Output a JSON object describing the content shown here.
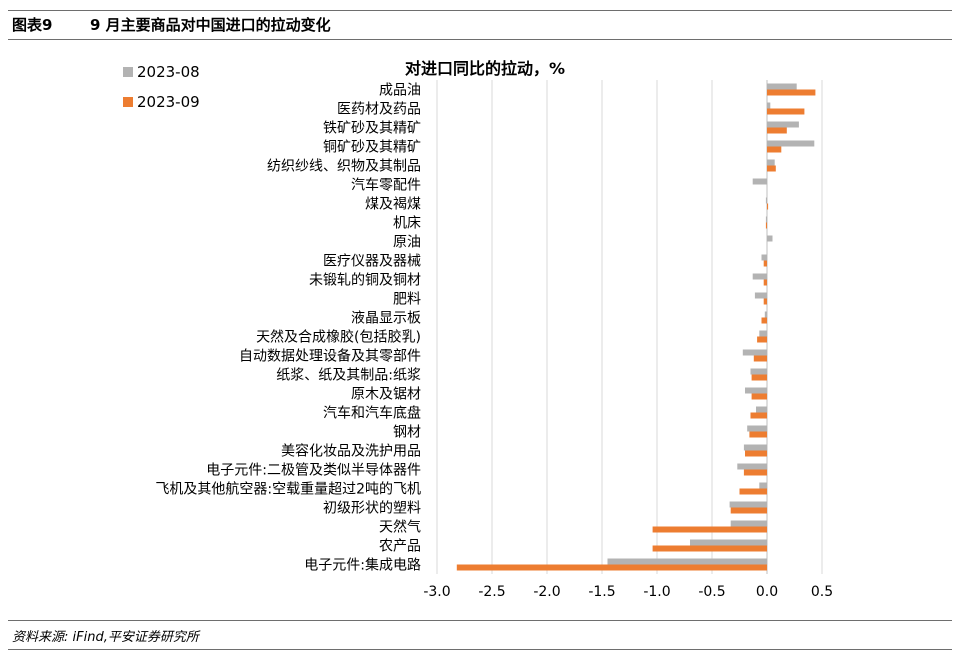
{
  "header": {
    "figure_label": "图表9",
    "title": "9 月主要商品对中国进口的拉动变化"
  },
  "footer": {
    "source": "资料来源: iFind,平安证券研究所"
  },
  "chart_data": {
    "type": "bar",
    "orientation": "horizontal",
    "title": "对进口同比的拉动，%",
    "xlabel": "",
    "ylabel": "",
    "xlim": [
      -3.0,
      0.5
    ],
    "xticks": [
      -3.0,
      -2.5,
      -2.0,
      -1.5,
      -1.0,
      -0.5,
      0.0,
      0.5
    ],
    "xtick_labels": [
      "-3.0",
      "-2.5",
      "-2.0",
      "-1.5",
      "-1.0",
      "-0.5",
      "0.0",
      "0.5"
    ],
    "grid": true,
    "legend_position": "top-left",
    "categories": [
      "成品油",
      "医药材及药品",
      "铁矿砂及其精矿",
      "铜矿砂及其精矿",
      "纺织纱线、织物及其制品",
      "汽车零配件",
      "煤及褐煤",
      "机床",
      "原油",
      "医疗仪器及器械",
      "未锻轧的铜及铜材",
      "肥料",
      "液晶显示板",
      "天然及合成橡胶(包括胶乳)",
      "自动数据处理设备及其零部件",
      "纸浆、纸及其制品:纸浆",
      "原木及锯材",
      "汽车和汽车底盘",
      "钢材",
      "美容化妆品及洗护用品",
      "电子元件:二极管及类似半导体器件",
      "飞机及其他航空器:空载重量超过2吨的飞机",
      "初级形状的塑料",
      "天然气",
      "农产品",
      "电子元件:集成电路"
    ],
    "series": [
      {
        "name": "2023-08",
        "color": "#b3b3b3",
        "values": [
          0.27,
          0.03,
          0.29,
          0.43,
          0.07,
          -0.13,
          -0.01,
          -0.01,
          0.05,
          -0.05,
          -0.13,
          -0.11,
          -0.02,
          -0.07,
          -0.22,
          -0.15,
          -0.2,
          -0.1,
          -0.18,
          -0.21,
          -0.27,
          -0.07,
          -0.34,
          -0.33,
          -0.7,
          -1.45
        ]
      },
      {
        "name": "2023-09",
        "color": "#ed7d31",
        "values": [
          0.44,
          0.34,
          0.18,
          0.13,
          0.08,
          0.0,
          0.01,
          -0.01,
          0.0,
          -0.03,
          -0.03,
          -0.03,
          -0.05,
          -0.09,
          -0.12,
          -0.14,
          -0.14,
          -0.15,
          -0.16,
          -0.2,
          -0.21,
          -0.25,
          -0.33,
          -1.04,
          -1.04,
          -2.82
        ]
      }
    ]
  }
}
